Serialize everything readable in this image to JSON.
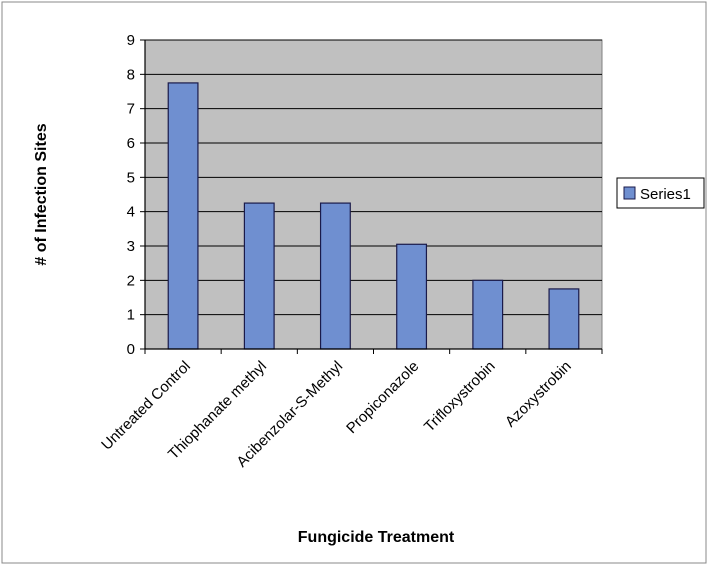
{
  "chart_data": {
    "type": "bar",
    "categories": [
      "Untreated Control",
      "Thiophanate methyl",
      "Acibenzolar-S-Methyl",
      "Propiconazole",
      "Trifloxystrobin",
      "Azoxystrobin"
    ],
    "series": [
      {
        "name": "Series1",
        "values": [
          7.75,
          4.25,
          4.25,
          3.05,
          2.0,
          1.75
        ]
      }
    ],
    "title": "",
    "xlabel": "Fungicide Treatment",
    "ylabel": "# of Infection Sites",
    "ylim": [
      0,
      9
    ],
    "yticks": [
      0,
      1,
      2,
      3,
      4,
      5,
      6,
      7,
      8,
      9
    ],
    "grid": true,
    "legend_position": "right",
    "colors": {
      "plot_background": "#c0c0c0",
      "bar_fill": "#6f8fd0",
      "bar_stroke": "#1a1a4a",
      "gridline": "#000000"
    }
  }
}
